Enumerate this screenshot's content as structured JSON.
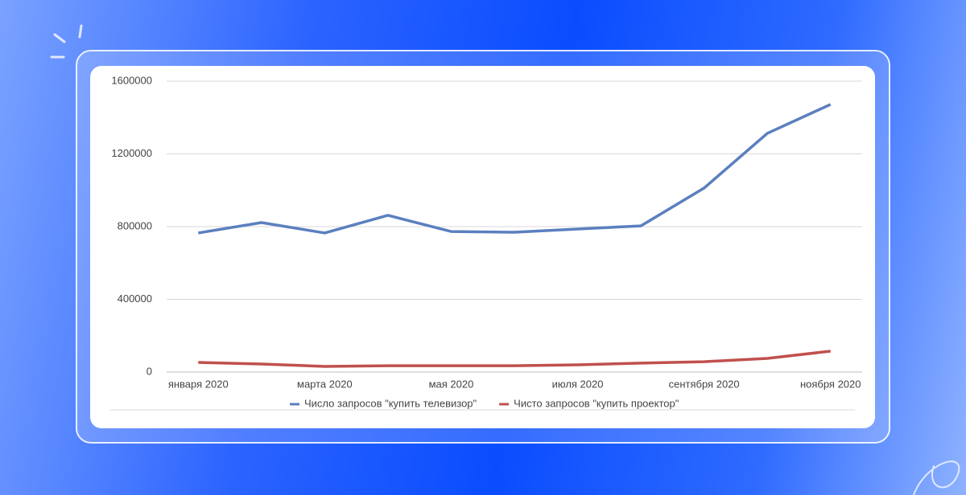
{
  "chart_data": {
    "type": "line",
    "categories": [
      "января 2020",
      null,
      "марта 2020",
      null,
      "мая 2020",
      null,
      "июля 2020",
      null,
      "сентября 2020",
      null,
      "ноября 2020"
    ],
    "series": [
      {
        "name": "Число запросов \"купить телевизор\"",
        "color": "#5b7fbf",
        "values": [
          765000,
          822000,
          765000,
          862000,
          773000,
          769000,
          787000,
          804000,
          1012000,
          1313000,
          1472000
        ]
      },
      {
        "name": "Чисто запросов \"купить проектор\"",
        "color": "#c0504d",
        "values": [
          53000,
          44000,
          31000,
          35000,
          35000,
          35000,
          40000,
          49000,
          57000,
          75000,
          115000
        ]
      }
    ],
    "ylim": [
      0,
      1600000
    ],
    "yticks": [
      0,
      400000,
      800000,
      1200000,
      1600000
    ],
    "grid": true,
    "legend": "bottom"
  }
}
